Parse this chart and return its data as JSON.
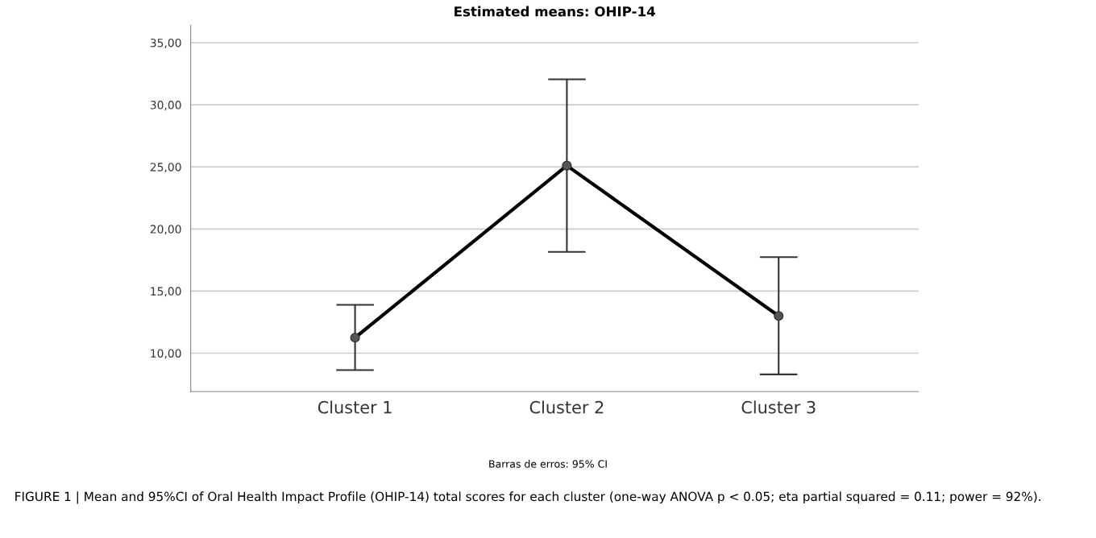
{
  "chart_data": {
    "type": "line",
    "title": "Estimated means: OHIP-14",
    "categories": [
      "Cluster 1",
      "Cluster 2",
      "Cluster 3"
    ],
    "series": [
      {
        "color": "#000000",
        "values": [
          11.25,
          25.1,
          13.0
        ],
        "errors": [
          [
            8.64,
            13.89
          ],
          [
            18.16,
            32.05
          ],
          [
            8.29,
            17.73
          ]
        ]
      }
    ],
    "ylim": [
      6.9,
      36.4
    ],
    "yticks": [
      {
        "value": 10,
        "label": "10,00"
      },
      {
        "value": 15,
        "label": "15,00"
      },
      {
        "value": 20,
        "label": "20,00"
      },
      {
        "value": 25,
        "label": "25,00"
      },
      {
        "value": 30,
        "label": "30,00"
      },
      {
        "value": 35,
        "label": "35,00"
      }
    ],
    "grid": "y",
    "marker": "circle",
    "line_style": "solid",
    "annotations": [
      "Barras de erros: 95% CI",
      "FIGURE 1 | Mean and 95%CI of Oral Health Impact Profile (OHIP-14) total scores for each cluster (one-way ANOVA p < 0.05; eta partial squared = 0.11; power = 92%)."
    ]
  }
}
